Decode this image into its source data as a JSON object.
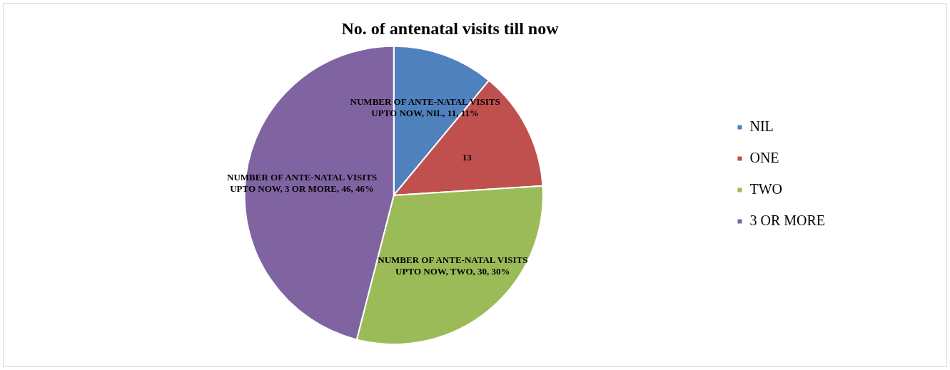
{
  "chart_data": {
    "type": "pie",
    "title": "No. of antenatal visits till now",
    "categories": [
      "NIL",
      "ONE",
      "TWO",
      "3 OR MORE"
    ],
    "values": [
      11,
      13,
      30,
      46
    ],
    "colors": [
      "#4f81bd",
      "#c0504d",
      "#9bbb59",
      "#8064a2"
    ],
    "value_labels": [
      "NUMBER OF ANTE-NATAL VISITS UPTO NOW, NIL, 11, 11%",
      "13",
      "NUMBER OF ANTE-NATAL VISITS UPTO NOW, TWO, 30, 30%",
      "NUMBER OF ANTE-NATAL VISITS UPTO NOW, 3 OR MORE, 46, 46%"
    ],
    "legend": "right"
  }
}
